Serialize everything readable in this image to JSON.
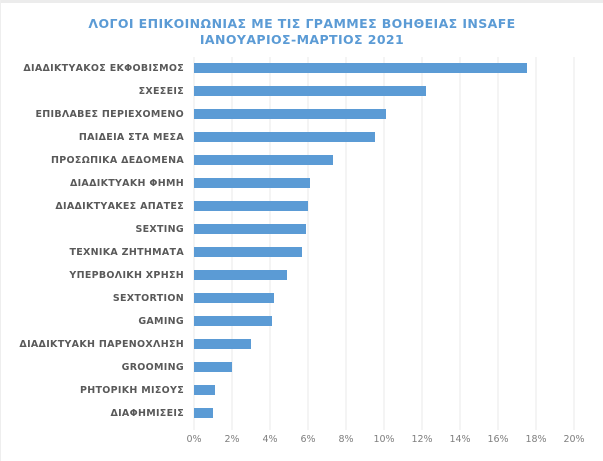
{
  "title": {
    "line1": "ΛΟΓΟΙ ΕΠΙΚΟΙΝΩΝΙΑΣ ΜΕ ΤΙΣ ΓΡΑΜΜΕΣ ΒΟΗΘΕΙΑΣ INSAFE",
    "line2": "ΙΑΝΟΥΑΡΙΟΣ-ΜΑΡΤΙΟΣ 2021"
  },
  "colors": {
    "bar": "#5B9BD5",
    "title": "#5B9BD5",
    "category_label": "#595959",
    "axis_label": "#7f7f7f",
    "gridline": "#e8e8e8"
  },
  "chart_data": {
    "type": "bar",
    "orientation": "horizontal",
    "title": "ΛΟΓΟΙ ΕΠΙΚΟΙΝΩΝΙΑΣ ΜΕ ΤΙΣ ΓΡΑΜΜΕΣ ΒΟΗΘΕΙΑΣ INSAFE ΙΑΝΟΥΑΡΙΟΣ-ΜΑΡΤΙΟΣ 2021",
    "categories": [
      "ΔΙΑΔΙΚΤΥΑΚΟΣ ΕΚΦΟΒΙΣΜΟΣ",
      "ΣΧΕΣΕΙΣ",
      "ΕΠΙΒΛΑΒΕΣ ΠΕΡΙΕΧΟΜΕΝΟ",
      "ΠΑΙΔΕΙΑ ΣΤΑ ΜΕΣΑ",
      "ΠΡΟΣΩΠΙΚΑ ΔΕΔΟΜΕΝΑ",
      "ΔΙΑΔΙΚΤΥΑΚΗ ΦΗΜΗ",
      "ΔΙΑΔΙΚΤΥΑΚΕΣ ΑΠΑΤΕΣ",
      "SEXTING",
      "ΤΕΧΝΙΚΑ ΖΗΤΗΜΑΤΑ",
      "ΥΠΕΡΒΟΛΙΚΗ ΧΡΗΣΗ",
      "SEXTORTION",
      "GAMING",
      "ΔΙΑΔΙΚΤΥΑΚΗ ΠΑΡΕΝΟΧΛΗΣΗ",
      "GROOMING",
      "ΡΗΤΟΡΙΚΗ ΜΙΣΟΥΣ",
      "ΔΙΑΦΗΜΙΣΕΙΣ"
    ],
    "values": [
      17.5,
      12.2,
      10.1,
      9.5,
      7.3,
      6.1,
      6.0,
      5.9,
      5.7,
      4.9,
      4.2,
      4.1,
      3.0,
      2.0,
      1.1,
      1.0
    ],
    "value_unit": "%",
    "xlabel": "",
    "ylabel": "",
    "xlim": [
      0,
      20
    ],
    "x_ticks": [
      "0%",
      "2%",
      "4%",
      "6%",
      "8%",
      "10%",
      "12%",
      "14%",
      "16%",
      "18%",
      "20%"
    ],
    "grid": true,
    "legend": false
  }
}
